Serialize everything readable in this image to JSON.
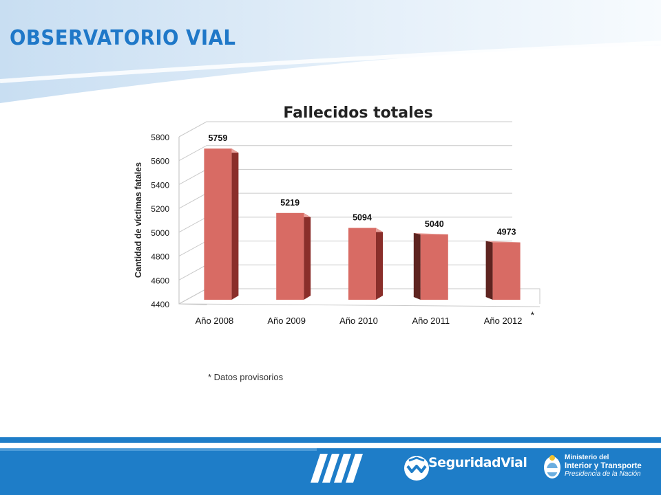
{
  "header": {
    "title": "OBSERVATORIO VIAL"
  },
  "footnote": "* Datos provisorios",
  "footer": {
    "seguridad_prefix": "Seguridad",
    "seguridad_suffix": "Vial",
    "ministerio_line1": "Ministerio del",
    "ministerio_line2": "Interior y Transporte",
    "ministerio_line3": "Presidencia de la Nación"
  },
  "colors": {
    "header_blue": "#1f78c8",
    "footer_blue": "#1e7dc8",
    "bar_face": "#d86b64",
    "bar_side": "#8a2e2a",
    "bar_dark": "#5e2420"
  },
  "chart_data": {
    "type": "bar",
    "title": "Fallecidos totales",
    "ylabel": "Cantidad de víctimas fatales",
    "xlabel": "",
    "categories": [
      "Año 2008",
      "Año 2009",
      "Año 2010",
      "Año 2011",
      "Año 2012"
    ],
    "values": [
      5759,
      5219,
      5094,
      5040,
      4973
    ],
    "data_labels": [
      "5759",
      "5219",
      "5094",
      "5040",
      "4973"
    ],
    "ylim": [
      4400,
      5800
    ],
    "yticks": [
      4400,
      4600,
      4800,
      5000,
      5200,
      5400,
      5600,
      5800
    ],
    "grid": true,
    "style": "3d",
    "annotation": "*"
  }
}
